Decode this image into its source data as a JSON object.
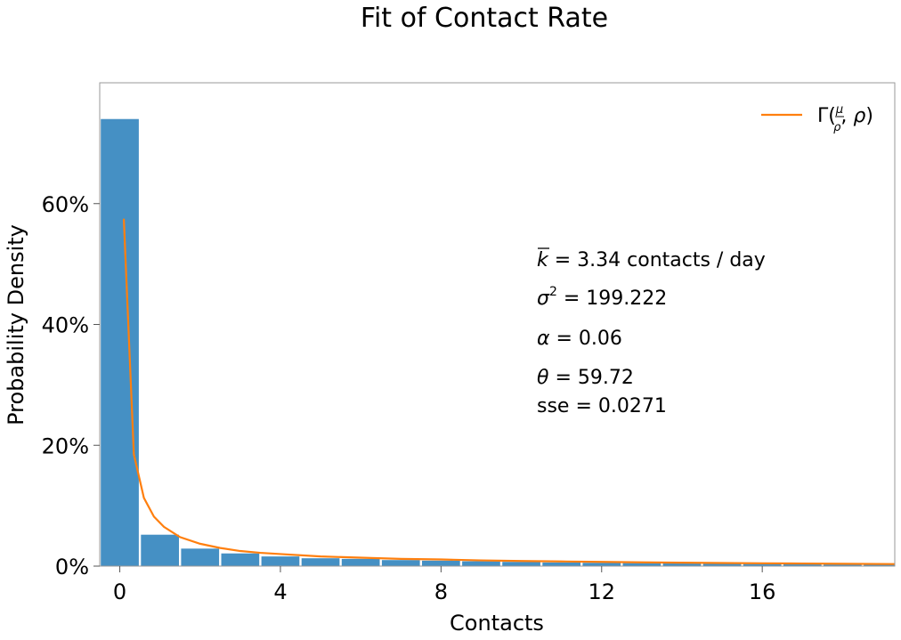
{
  "chart_data": {
    "type": "bar",
    "title": "Fit of Contact Rate",
    "xlabel": "Contacts",
    "ylabel": "Probability Density",
    "xlim": [
      -0.5,
      19.3
    ],
    "ylim": [
      0,
      0.8
    ],
    "grid": false,
    "legend": {
      "position": "top-right",
      "entries": [
        {
          "label": "Γ(μ/ρ, ρ)",
          "color": "#ff7f0e"
        }
      ]
    },
    "xticks": [
      0,
      4,
      8,
      12,
      16
    ],
    "xtick_labels": [
      "0",
      "4",
      "8",
      "12",
      "16"
    ],
    "yticks": [
      0,
      0.2,
      0.4,
      0.6
    ],
    "ytick_labels": [
      "0%",
      "20%",
      "40%",
      "60%"
    ],
    "bar_color": "#4590c4",
    "bars": [
      {
        "left": -0.5,
        "right": 0.5,
        "value": 0.74
      },
      {
        "left": 0.5,
        "right": 1.5,
        "value": 0.052
      },
      {
        "left": 1.5,
        "right": 2.5,
        "value": 0.029
      },
      {
        "left": 2.5,
        "right": 3.5,
        "value": 0.021
      },
      {
        "left": 3.5,
        "right": 4.5,
        "value": 0.016
      },
      {
        "left": 4.5,
        "right": 5.5,
        "value": 0.013
      },
      {
        "left": 5.5,
        "right": 6.5,
        "value": 0.012
      },
      {
        "left": 6.5,
        "right": 7.5,
        "value": 0.01
      },
      {
        "left": 7.5,
        "right": 8.5,
        "value": 0.009
      },
      {
        "left": 8.5,
        "right": 9.5,
        "value": 0.008
      },
      {
        "left": 9.5,
        "right": 10.5,
        "value": 0.007
      },
      {
        "left": 10.5,
        "right": 11.5,
        "value": 0.006
      },
      {
        "left": 11.5,
        "right": 12.5,
        "value": 0.0055
      },
      {
        "left": 12.5,
        "right": 13.5,
        "value": 0.005
      },
      {
        "left": 13.5,
        "right": 14.5,
        "value": 0.0045
      },
      {
        "left": 14.5,
        "right": 15.5,
        "value": 0.004
      },
      {
        "left": 15.5,
        "right": 16.5,
        "value": 0.0035
      },
      {
        "left": 16.5,
        "right": 17.5,
        "value": 0.003
      },
      {
        "left": 17.5,
        "right": 18.5,
        "value": 0.0028
      },
      {
        "left": 18.5,
        "right": 19.5,
        "value": 0.0025
      }
    ],
    "fit_line": {
      "color": "#ff7f0e",
      "x": [
        0.1,
        0.35,
        0.6,
        0.85,
        1.1,
        1.5,
        2.0,
        2.5,
        3.0,
        3.5,
        4.0,
        5.0,
        6.0,
        7.0,
        8.0,
        9.0,
        10.0,
        11.0,
        12.0,
        13.0,
        14.0,
        15.0,
        16.0,
        17.0,
        18.0,
        19.3
      ],
      "y": [
        0.575,
        0.185,
        0.113,
        0.082,
        0.065,
        0.048,
        0.037,
        0.03,
        0.025,
        0.022,
        0.02,
        0.016,
        0.014,
        0.012,
        0.011,
        0.0095,
        0.0085,
        0.0077,
        0.007,
        0.0063,
        0.0057,
        0.0052,
        0.0047,
        0.0043,
        0.0039,
        0.0034
      ]
    },
    "annotations": {
      "mean_value": " = 3.34 contacts / day",
      "variance_value": " = 199.222",
      "alpha_value": " = 0.06",
      "theta_value": " = 59.72",
      "sse_line": "sse = 0.0271"
    }
  }
}
